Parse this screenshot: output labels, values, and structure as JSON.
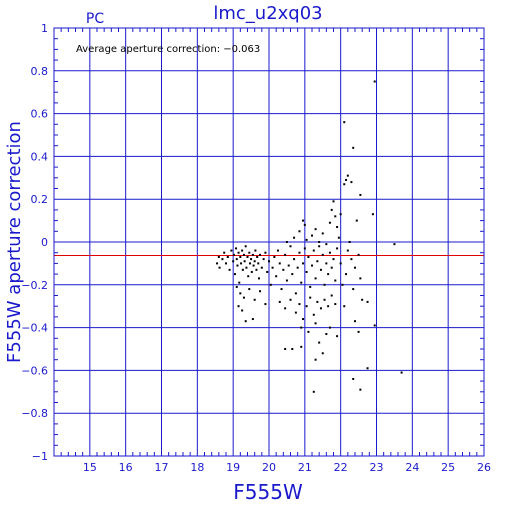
{
  "header": {
    "title": "lmc_u2xq03",
    "camera": "PC"
  },
  "annotation": "Average aperture correction: −0.063",
  "colors": {
    "axes": "#1a1acd",
    "grid": "#1a1acd",
    "reference_line": "#e00000",
    "points": "#000000",
    "background": "#ffffff"
  },
  "chart_data": {
    "type": "scatter",
    "title": "lmc_u2xq03",
    "subtitle": "PC",
    "xlabel": "F555W",
    "ylabel": "F555W aperture correction",
    "xlim": [
      14,
      26
    ],
    "ylim": [
      -1,
      1
    ],
    "xticks": [
      15,
      16,
      17,
      18,
      19,
      20,
      21,
      22,
      23,
      24,
      25,
      26
    ],
    "yticks": [
      -1,
      -0.8,
      -0.6,
      -0.4,
      -0.2,
      0,
      0.2,
      0.4,
      0.6,
      0.8,
      1
    ],
    "xtick_labels": [
      "15",
      "16",
      "17",
      "18",
      "19",
      "20",
      "21",
      "22",
      "23",
      "24",
      "25",
      "26"
    ],
    "ytick_labels": [
      "−1",
      "−0.8",
      "−0.6",
      "−0.4",
      "−0.2",
      "0",
      "0.2",
      "0.4",
      "0.6",
      "0.8",
      "1"
    ],
    "grid": true,
    "reference_line": {
      "y": -0.063
    },
    "points": [
      [
        18.55,
        -0.1
      ],
      [
        18.6,
        -0.07
      ],
      [
        18.62,
        -0.12
      ],
      [
        18.7,
        -0.08
      ],
      [
        18.75,
        -0.05
      ],
      [
        18.8,
        -0.1
      ],
      [
        18.85,
        -0.07
      ],
      [
        18.9,
        -0.13
      ],
      [
        18.95,
        -0.04
      ],
      [
        19.0,
        -0.09
      ],
      [
        19.02,
        -0.06
      ],
      [
        19.05,
        -0.15
      ],
      [
        19.08,
        -0.03
      ],
      [
        19.1,
        -0.08
      ],
      [
        19.12,
        -0.11
      ],
      [
        19.15,
        -0.05
      ],
      [
        19.17,
        -0.19
      ],
      [
        19.2,
        -0.07
      ],
      [
        19.22,
        -0.1
      ],
      [
        19.25,
        -0.04
      ],
      [
        19.27,
        -0.13
      ],
      [
        19.3,
        -0.06
      ],
      [
        19.32,
        -0.09
      ],
      [
        19.35,
        -0.02
      ],
      [
        19.37,
        -0.12
      ],
      [
        19.4,
        -0.07
      ],
      [
        19.42,
        -0.16
      ],
      [
        19.45,
        -0.05
      ],
      [
        19.47,
        -0.1
      ],
      [
        19.5,
        -0.08
      ],
      [
        19.52,
        -0.14
      ],
      [
        19.55,
        -0.06
      ],
      [
        19.57,
        -0.11
      ],
      [
        19.6,
        -0.09
      ],
      [
        19.62,
        -0.04
      ],
      [
        19.65,
        -0.13
      ],
      [
        19.67,
        -0.07
      ],
      [
        19.7,
        -0.1
      ],
      [
        19.72,
        -0.17
      ],
      [
        19.75,
        -0.06
      ],
      [
        19.8,
        -0.12
      ],
      [
        19.85,
        -0.08
      ],
      [
        19.9,
        -0.05
      ],
      [
        19.95,
        -0.14
      ],
      [
        20.0,
        -0.09
      ],
      [
        19.1,
        -0.21
      ],
      [
        19.2,
        -0.24
      ],
      [
        19.3,
        -0.26
      ],
      [
        19.45,
        -0.22
      ],
      [
        19.6,
        -0.27
      ],
      [
        19.75,
        -0.23
      ],
      [
        19.15,
        -0.3
      ],
      [
        19.25,
        -0.32
      ],
      [
        19.9,
        -0.29
      ],
      [
        19.35,
        -0.37
      ],
      [
        19.55,
        -0.36
      ],
      [
        20.05,
        -0.2
      ],
      [
        20.1,
        -0.12
      ],
      [
        20.15,
        -0.07
      ],
      [
        20.2,
        -0.16
      ],
      [
        20.25,
        -0.04
      ],
      [
        20.3,
        -0.1
      ],
      [
        20.35,
        -0.22
      ],
      [
        20.4,
        -0.13
      ],
      [
        20.45,
        -0.06
      ],
      [
        20.5,
        -0.18
      ],
      [
        20.55,
        -0.11
      ],
      [
        20.6,
        -0.02
      ],
      [
        20.65,
        -0.15
      ],
      [
        20.7,
        -0.08
      ],
      [
        20.75,
        -0.24
      ],
      [
        20.8,
        -0.12
      ],
      [
        20.85,
        -0.05
      ],
      [
        20.9,
        -0.19
      ],
      [
        20.95,
        -0.1
      ],
      [
        21.0,
        -0.03
      ],
      [
        21.05,
        -0.14
      ],
      [
        21.1,
        -0.07
      ],
      [
        21.15,
        -0.21
      ],
      [
        21.2,
        -0.11
      ],
      [
        21.25,
        -0.04
      ],
      [
        21.3,
        -0.17
      ],
      [
        21.35,
        -0.09
      ],
      [
        21.4,
        -0.02
      ],
      [
        21.45,
        -0.13
      ],
      [
        21.5,
        -0.06
      ],
      [
        21.55,
        -0.2
      ],
      [
        21.6,
        -0.1
      ],
      [
        21.65,
        -0.15
      ],
      [
        21.7,
        -0.05
      ],
      [
        21.75,
        -0.12
      ],
      [
        21.8,
        -0.08
      ],
      [
        21.85,
        -0.18
      ],
      [
        21.9,
        -0.03
      ],
      [
        20.5,
        0.0
      ],
      [
        20.7,
        0.02
      ],
      [
        20.85,
        0.05
      ],
      [
        20.95,
        0.1
      ],
      [
        21.0,
        0.08
      ],
      [
        21.05,
        0.01
      ],
      [
        21.2,
        0.03
      ],
      [
        21.3,
        0.06
      ],
      [
        21.4,
        0.0
      ],
      [
        21.5,
        0.04
      ],
      [
        21.6,
        -0.01
      ],
      [
        21.7,
        0.09
      ],
      [
        21.75,
        0.15
      ],
      [
        21.8,
        0.19
      ],
      [
        21.85,
        0.12
      ],
      [
        21.9,
        0.07
      ],
      [
        21.95,
        0.02
      ],
      [
        20.3,
        -0.28
      ],
      [
        20.45,
        -0.31
      ],
      [
        20.6,
        -0.27
      ],
      [
        20.75,
        -0.33
      ],
      [
        20.85,
        -0.29
      ],
      [
        20.95,
        -0.36
      ],
      [
        21.05,
        -0.3
      ],
      [
        21.15,
        -0.26
      ],
      [
        21.25,
        -0.34
      ],
      [
        21.35,
        -0.28
      ],
      [
        21.45,
        -0.31
      ],
      [
        21.55,
        -0.27
      ],
      [
        21.65,
        -0.3
      ],
      [
        21.75,
        -0.25
      ],
      [
        21.85,
        -0.29
      ],
      [
        20.9,
        -0.4
      ],
      [
        21.1,
        -0.42
      ],
      [
        21.3,
        -0.38
      ],
      [
        21.4,
        -0.47
      ],
      [
        21.6,
        -0.43
      ],
      [
        21.7,
        -0.4
      ],
      [
        20.45,
        -0.5
      ],
      [
        20.65,
        -0.5
      ],
      [
        20.9,
        -0.49
      ],
      [
        21.3,
        -0.55
      ],
      [
        21.5,
        -0.52
      ],
      [
        21.9,
        -0.44
      ],
      [
        22.0,
        -0.1
      ],
      [
        22.05,
        -0.2
      ],
      [
        22.1,
        -0.3
      ],
      [
        22.15,
        -0.15
      ],
      [
        22.2,
        -0.04
      ],
      [
        22.25,
        0.0
      ],
      [
        22.3,
        -0.08
      ],
      [
        22.35,
        -0.22
      ],
      [
        22.4,
        -0.12
      ],
      [
        22.45,
        0.1
      ],
      [
        22.5,
        -0.06
      ],
      [
        22.55,
        -0.17
      ],
      [
        22.0,
        0.13
      ],
      [
        22.1,
        0.27
      ],
      [
        22.15,
        0.29
      ],
      [
        22.2,
        0.31
      ],
      [
        22.3,
        0.28
      ],
      [
        22.35,
        0.44
      ],
      [
        22.1,
        0.56
      ],
      [
        22.55,
        0.22
      ],
      [
        22.6,
        -0.27
      ],
      [
        22.4,
        -0.37
      ],
      [
        22.5,
        -0.42
      ],
      [
        22.35,
        -0.64
      ],
      [
        22.55,
        -0.69
      ],
      [
        22.75,
        -0.59
      ],
      [
        22.75,
        -0.28
      ],
      [
        22.95,
        -0.39
      ],
      [
        22.9,
        0.13
      ],
      [
        23.5,
        -0.01
      ],
      [
        23.7,
        -0.61
      ],
      [
        21.25,
        -0.7
      ],
      [
        22.95,
        0.75
      ]
    ]
  }
}
